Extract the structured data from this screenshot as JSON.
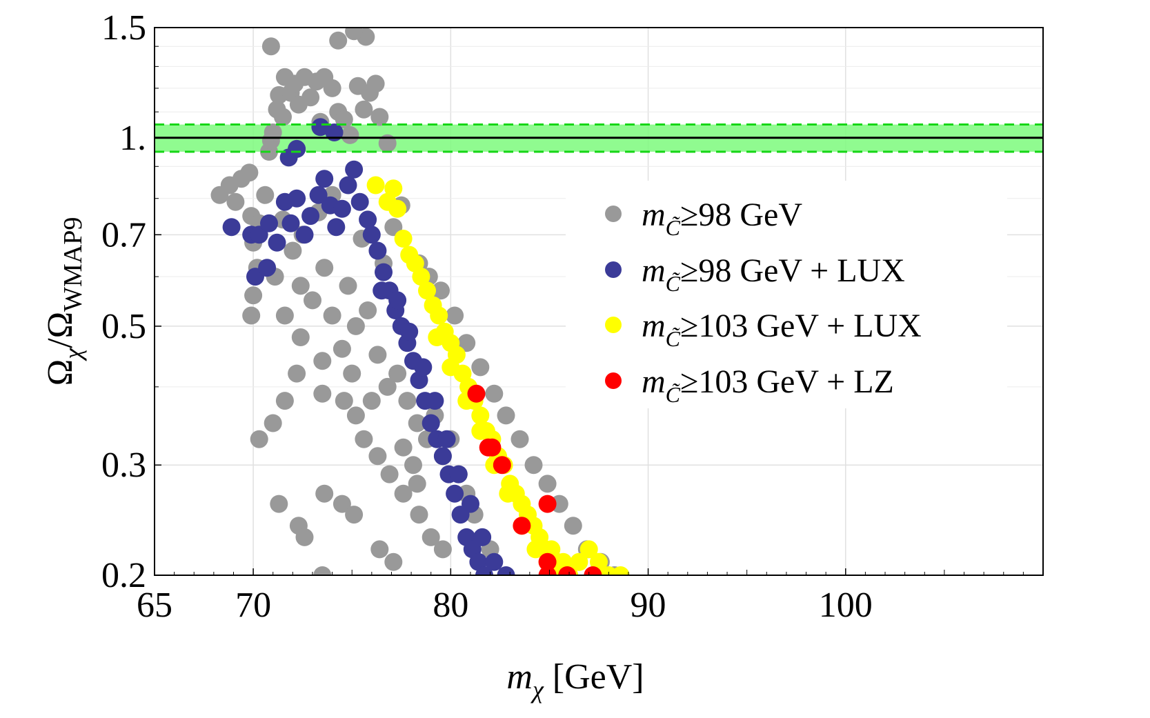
{
  "chart_data": {
    "type": "scatter",
    "title": "",
    "xlabel": {
      "main": "m",
      "sub": "χ",
      "unit": "[GeV]"
    },
    "ylabel": {
      "num": "Ω",
      "num_sub": "χ",
      "den": "Ω",
      "den_sub": "WMAP9"
    },
    "x_scale": "linear",
    "y_scale": "log",
    "xlim": [
      65,
      110
    ],
    "ylim": [
      0.2,
      1.5
    ],
    "x_ticks": [
      {
        "value": 65,
        "label": "65"
      },
      {
        "value": 70,
        "label": "70"
      },
      {
        "value": 80,
        "label": "80"
      },
      {
        "value": 90,
        "label": "90"
      },
      {
        "value": 100,
        "label": "100"
      }
    ],
    "y_ticks": [
      {
        "value": 0.2,
        "label": "0.2"
      },
      {
        "value": 0.3,
        "label": "0.3"
      },
      {
        "value": 0.5,
        "label": "0.5"
      },
      {
        "value": 0.7,
        "label": "0.7"
      },
      {
        "value": 1.0,
        "label": "1."
      },
      {
        "value": 1.5,
        "label": "1.5"
      }
    ],
    "grid": true,
    "reference": {
      "line": 1.0,
      "band": [
        0.95,
        1.05
      ],
      "band_color": "#7dfa7d",
      "dash_color": "#16d616"
    },
    "legend_position": "right",
    "series": [
      {
        "name": "gray",
        "color": "#999999",
        "label_pre": "m",
        "label_sub": "C̃",
        "label_post": "≥98 GeV"
      },
      {
        "name": "blue",
        "color": "#3b3b98",
        "label_pre": "m",
        "label_sub": "C̃",
        "label_post": "≥98 GeV + LUX"
      },
      {
        "name": "yellow",
        "color": "#ffff00",
        "label_pre": "m",
        "label_sub": "C̃",
        "label_post": "≥103 GeV + LUX"
      },
      {
        "name": "red",
        "color": "#ff0000",
        "label_pre": "m",
        "label_sub": "C̃",
        "label_post": "≥103 GeV + LZ"
      }
    ],
    "points": {
      "gray": [
        [
          68.3,
          0.81
        ],
        [
          68.8,
          0.84
        ],
        [
          69.1,
          0.79
        ],
        [
          69.4,
          0.86
        ],
        [
          69.8,
          0.88
        ],
        [
          69.9,
          0.75
        ],
        [
          70.0,
          0.68
        ],
        [
          70.2,
          0.62
        ],
        [
          70.0,
          0.56
        ],
        [
          69.9,
          0.52
        ],
        [
          70.3,
          0.73
        ],
        [
          70.6,
          0.81
        ],
        [
          70.8,
          0.95
        ],
        [
          70.9,
          0.99
        ],
        [
          71.0,
          1.02
        ],
        [
          71.2,
          1.11
        ],
        [
          71.3,
          1.17
        ],
        [
          71.6,
          1.25
        ],
        [
          71.5,
          1.08
        ],
        [
          71.9,
          1.18
        ],
        [
          72.1,
          1.22
        ],
        [
          72.3,
          1.13
        ],
        [
          72.6,
          1.25
        ],
        [
          72.9,
          1.16
        ],
        [
          73.2,
          1.23
        ],
        [
          73.4,
          1.06
        ],
        [
          73.6,
          1.25
        ],
        [
          74.0,
          1.2
        ],
        [
          74.3,
          1.1
        ],
        [
          74.6,
          1.07
        ],
        [
          74.9,
          1.01
        ],
        [
          75.3,
          1.21
        ],
        [
          75.6,
          1.11
        ],
        [
          75.9,
          1.18
        ],
        [
          76.2,
          1.22
        ],
        [
          76.4,
          1.08
        ],
        [
          76.8,
          0.98
        ],
        [
          75.7,
          1.45
        ],
        [
          75.1,
          1.48
        ],
        [
          74.3,
          1.43
        ],
        [
          70.9,
          1.4
        ],
        [
          72.2,
          0.96
        ],
        [
          71.5,
          0.74
        ],
        [
          72.0,
          0.66
        ],
        [
          71.1,
          0.6
        ],
        [
          72.4,
          0.58
        ],
        [
          73.0,
          0.55
        ],
        [
          73.6,
          0.62
        ],
        [
          74.0,
          0.52
        ],
        [
          74.8,
          0.58
        ],
        [
          75.2,
          0.5
        ],
        [
          75.8,
          0.53
        ],
        [
          76.3,
          0.45
        ],
        [
          76.8,
          0.4
        ],
        [
          77.3,
          0.42
        ],
        [
          77.8,
          0.38
        ],
        [
          78.3,
          0.35
        ],
        [
          78.8,
          0.33
        ],
        [
          79.2,
          0.36
        ],
        [
          79.6,
          0.31
        ],
        [
          80.0,
          0.33
        ],
        [
          80.4,
          0.29
        ],
        [
          80.8,
          0.27
        ],
        [
          81.2,
          0.25
        ],
        [
          81.6,
          0.23
        ],
        [
          82.0,
          0.22
        ],
        [
          78.4,
          0.63
        ],
        [
          78.9,
          0.6
        ],
        [
          79.5,
          0.57
        ],
        [
          80.2,
          0.52
        ],
        [
          80.8,
          0.47
        ],
        [
          81.5,
          0.43
        ],
        [
          82.2,
          0.39
        ],
        [
          82.8,
          0.36
        ],
        [
          83.5,
          0.33
        ],
        [
          84.2,
          0.3
        ],
        [
          84.9,
          0.28
        ],
        [
          85.5,
          0.26
        ],
        [
          86.2,
          0.24
        ],
        [
          86.9,
          0.22
        ],
        [
          87.6,
          0.21
        ],
        [
          88.3,
          0.2
        ],
        [
          77.5,
          0.78
        ],
        [
          77.1,
          0.72
        ],
        [
          71.6,
          0.52
        ],
        [
          72.4,
          0.48
        ],
        [
          73.5,
          0.44
        ],
        [
          74.5,
          0.46
        ],
        [
          75.0,
          0.42
        ],
        [
          76.0,
          0.38
        ],
        [
          72.2,
          0.42
        ],
        [
          71.6,
          0.38
        ],
        [
          71.0,
          0.35
        ],
        [
          70.3,
          0.33
        ],
        [
          73.5,
          0.39
        ],
        [
          74.6,
          0.38
        ],
        [
          75.2,
          0.36
        ],
        [
          75.6,
          0.33
        ],
        [
          76.3,
          0.31
        ],
        [
          76.9,
          0.29
        ],
        [
          77.6,
          0.27
        ],
        [
          78.4,
          0.25
        ],
        [
          79.0,
          0.23
        ],
        [
          79.6,
          0.22
        ],
        [
          71.3,
          0.26
        ],
        [
          72.3,
          0.24
        ],
        [
          73.6,
          0.27
        ],
        [
          74.5,
          0.26
        ],
        [
          75.1,
          0.25
        ],
        [
          72.6,
          0.23
        ],
        [
          73.5,
          0.2
        ],
        [
          76.4,
          0.22
        ],
        [
          77.1,
          0.21
        ],
        [
          78.3,
          0.28
        ],
        [
          77.6,
          0.32
        ],
        [
          78.1,
          0.3
        ],
        [
          74.0,
          0.81
        ],
        [
          73.3,
          0.76
        ],
        [
          72.5,
          0.7
        ],
        [
          75.5,
          0.69
        ],
        [
          76.6,
          0.63
        ]
      ],
      "blue": [
        [
          68.9,
          0.72
        ],
        [
          69.9,
          0.7
        ],
        [
          70.3,
          0.7
        ],
        [
          70.8,
          0.73
        ],
        [
          71.2,
          0.68
        ],
        [
          71.6,
          0.79
        ],
        [
          71.9,
          0.73
        ],
        [
          72.2,
          0.8
        ],
        [
          72.6,
          0.7
        ],
        [
          72.9,
          0.75
        ],
        [
          73.3,
          0.81
        ],
        [
          73.6,
          0.86
        ],
        [
          73.9,
          0.78
        ],
        [
          74.2,
          0.72
        ],
        [
          74.5,
          0.77
        ],
        [
          74.8,
          0.84
        ],
        [
          75.1,
          0.89
        ],
        [
          75.4,
          0.79
        ],
        [
          75.8,
          0.74
        ],
        [
          76.0,
          0.7
        ],
        [
          76.3,
          0.66
        ],
        [
          76.6,
          0.61
        ],
        [
          76.9,
          0.57
        ],
        [
          77.2,
          0.53
        ],
        [
          77.5,
          0.5
        ],
        [
          77.8,
          0.47
        ],
        [
          78.1,
          0.44
        ],
        [
          78.4,
          0.41
        ],
        [
          78.7,
          0.38
        ],
        [
          79.0,
          0.35
        ],
        [
          79.3,
          0.33
        ],
        [
          79.6,
          0.31
        ],
        [
          79.9,
          0.29
        ],
        [
          80.2,
          0.27
        ],
        [
          80.5,
          0.25
        ],
        [
          80.8,
          0.23
        ],
        [
          81.1,
          0.22
        ],
        [
          81.4,
          0.21
        ],
        [
          81.7,
          0.2
        ],
        [
          76.5,
          0.57
        ],
        [
          77.3,
          0.55
        ],
        [
          77.9,
          0.49
        ],
        [
          78.6,
          0.43
        ],
        [
          79.2,
          0.38
        ],
        [
          79.8,
          0.33
        ],
        [
          80.4,
          0.29
        ],
        [
          81.0,
          0.26
        ],
        [
          81.6,
          0.23
        ],
        [
          82.2,
          0.21
        ],
        [
          82.8,
          0.2
        ],
        [
          70.1,
          0.6
        ],
        [
          70.7,
          0.62
        ],
        [
          71.8,
          0.93
        ],
        [
          73.4,
          1.04
        ],
        [
          74.1,
          1.02
        ],
        [
          72.2,
          0.96
        ]
      ],
      "yellow": [
        [
          76.2,
          0.84
        ],
        [
          76.8,
          0.79
        ],
        [
          77.1,
          0.83
        ],
        [
          77.3,
          0.77
        ],
        [
          77.6,
          0.69
        ],
        [
          77.9,
          0.65
        ],
        [
          78.2,
          0.63
        ],
        [
          78.5,
          0.6
        ],
        [
          78.8,
          0.57
        ],
        [
          79.1,
          0.54
        ],
        [
          79.4,
          0.52
        ],
        [
          79.7,
          0.49
        ],
        [
          80.0,
          0.47
        ],
        [
          80.3,
          0.45
        ],
        [
          80.6,
          0.42
        ],
        [
          80.9,
          0.4
        ],
        [
          81.2,
          0.38
        ],
        [
          81.5,
          0.36
        ],
        [
          81.8,
          0.34
        ],
        [
          82.1,
          0.33
        ],
        [
          82.4,
          0.31
        ],
        [
          82.7,
          0.3
        ],
        [
          83.0,
          0.28
        ],
        [
          83.3,
          0.27
        ],
        [
          83.6,
          0.26
        ],
        [
          83.9,
          0.25
        ],
        [
          84.2,
          0.24
        ],
        [
          84.5,
          0.23
        ],
        [
          84.8,
          0.22
        ],
        [
          85.1,
          0.22
        ],
        [
          85.4,
          0.21
        ],
        [
          85.7,
          0.21
        ],
        [
          86.0,
          0.2
        ],
        [
          86.5,
          0.21
        ],
        [
          87.0,
          0.22
        ],
        [
          87.5,
          0.21
        ],
        [
          88.0,
          0.2
        ],
        [
          88.6,
          0.2
        ],
        [
          79.3,
          0.48
        ],
        [
          80.0,
          0.43
        ],
        [
          80.8,
          0.38
        ],
        [
          81.5,
          0.34
        ],
        [
          82.2,
          0.3
        ],
        [
          82.9,
          0.27
        ],
        [
          83.6,
          0.24
        ],
        [
          84.3,
          0.22
        ],
        [
          84.9,
          0.21
        ],
        [
          85.6,
          0.2
        ]
      ],
      "red": [
        [
          81.3,
          0.39
        ],
        [
          81.9,
          0.32
        ],
        [
          82.1,
          0.32
        ],
        [
          82.6,
          0.3
        ],
        [
          83.6,
          0.24
        ],
        [
          84.9,
          0.26
        ],
        [
          84.9,
          0.21
        ],
        [
          84.9,
          0.2
        ],
        [
          85.9,
          0.2
        ],
        [
          87.2,
          0.2
        ]
      ]
    }
  }
}
